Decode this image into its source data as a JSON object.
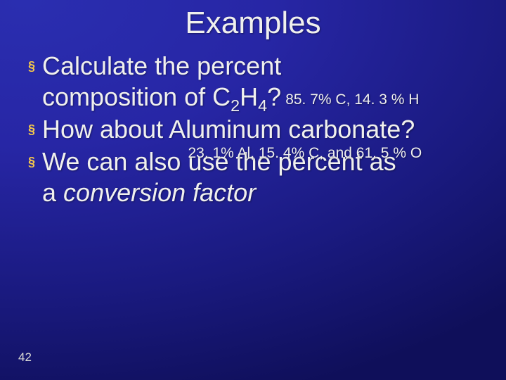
{
  "slide": {
    "title": "Examples",
    "background": {
      "gradient_from": "#2a2eb0",
      "gradient_to": "#0f0f5a"
    },
    "title_color": "#f0f0ee",
    "bullet_color": "#f5c84a",
    "text_color": "#f0f0ee",
    "title_fontsize": 44,
    "body_fontsize": 36,
    "answer_fontsize": 21,
    "page_number": "42",
    "bullets": [
      {
        "line1": "Calculate the percent",
        "line2a": "composition of C",
        "sub1": "2",
        "line2b": "H",
        "sub2": "4",
        "line2c": "?",
        "answer": "85. 7% C, 14. 3 % H"
      },
      {
        "line1": "How about Aluminum carbonate?"
      },
      {
        "line1a": "We can also ",
        "overlap_text": "use the percent as",
        "answer_overlap": "23. 1% Al, 15. 4% C, and 61. 5 % O",
        "line2a": "a ",
        "line2b_italic": "conversion factor"
      }
    ]
  }
}
